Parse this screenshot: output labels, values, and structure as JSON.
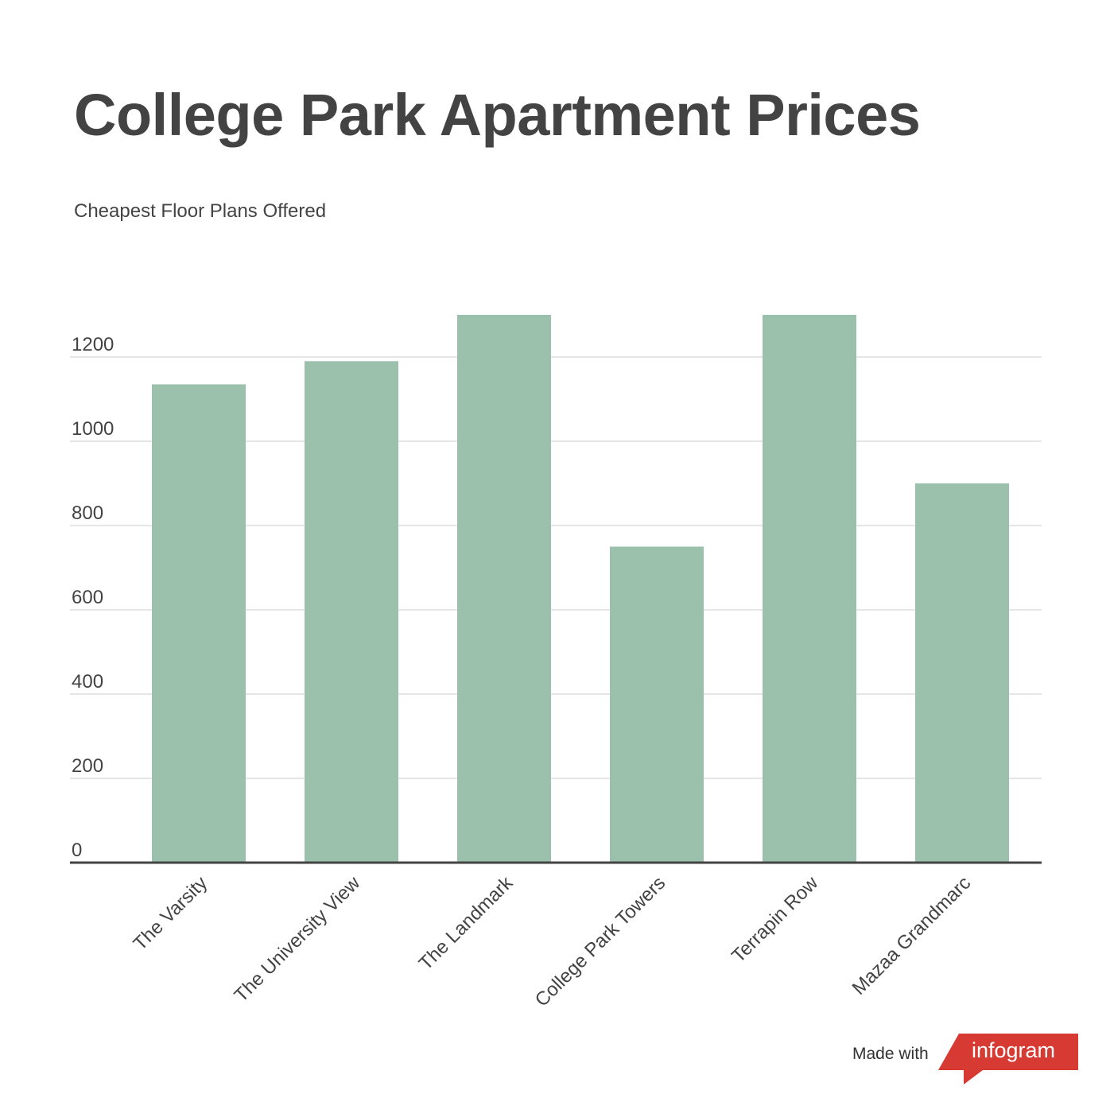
{
  "header": {
    "title": "College Park Apartment Prices",
    "subtitle": "Cheapest Floor Plans Offered"
  },
  "footer": {
    "made_with": "Made with",
    "brand": "infogram",
    "brand_color": "#d63a32"
  },
  "colors": {
    "bar": "#9bc1ac",
    "grid": "#dddddd",
    "axis": "#444444",
    "text": "#434343"
  },
  "chart_data": {
    "type": "bar",
    "title": "College Park Apartment Prices",
    "subtitle": "Cheapest Floor Plans Offered",
    "categories": [
      "The Varsity",
      "The University View",
      "The Landmark",
      "College Park Towers",
      "Terrapin Row",
      "Mazaa Grandmarc"
    ],
    "values": [
      1135,
      1190,
      1300,
      750,
      1300,
      900
    ],
    "yticks": [
      0,
      200,
      400,
      600,
      800,
      1000,
      1200
    ],
    "ylim": [
      0,
      1300
    ],
    "grid": true,
    "legend": "none",
    "xlabel": "",
    "ylabel": ""
  }
}
